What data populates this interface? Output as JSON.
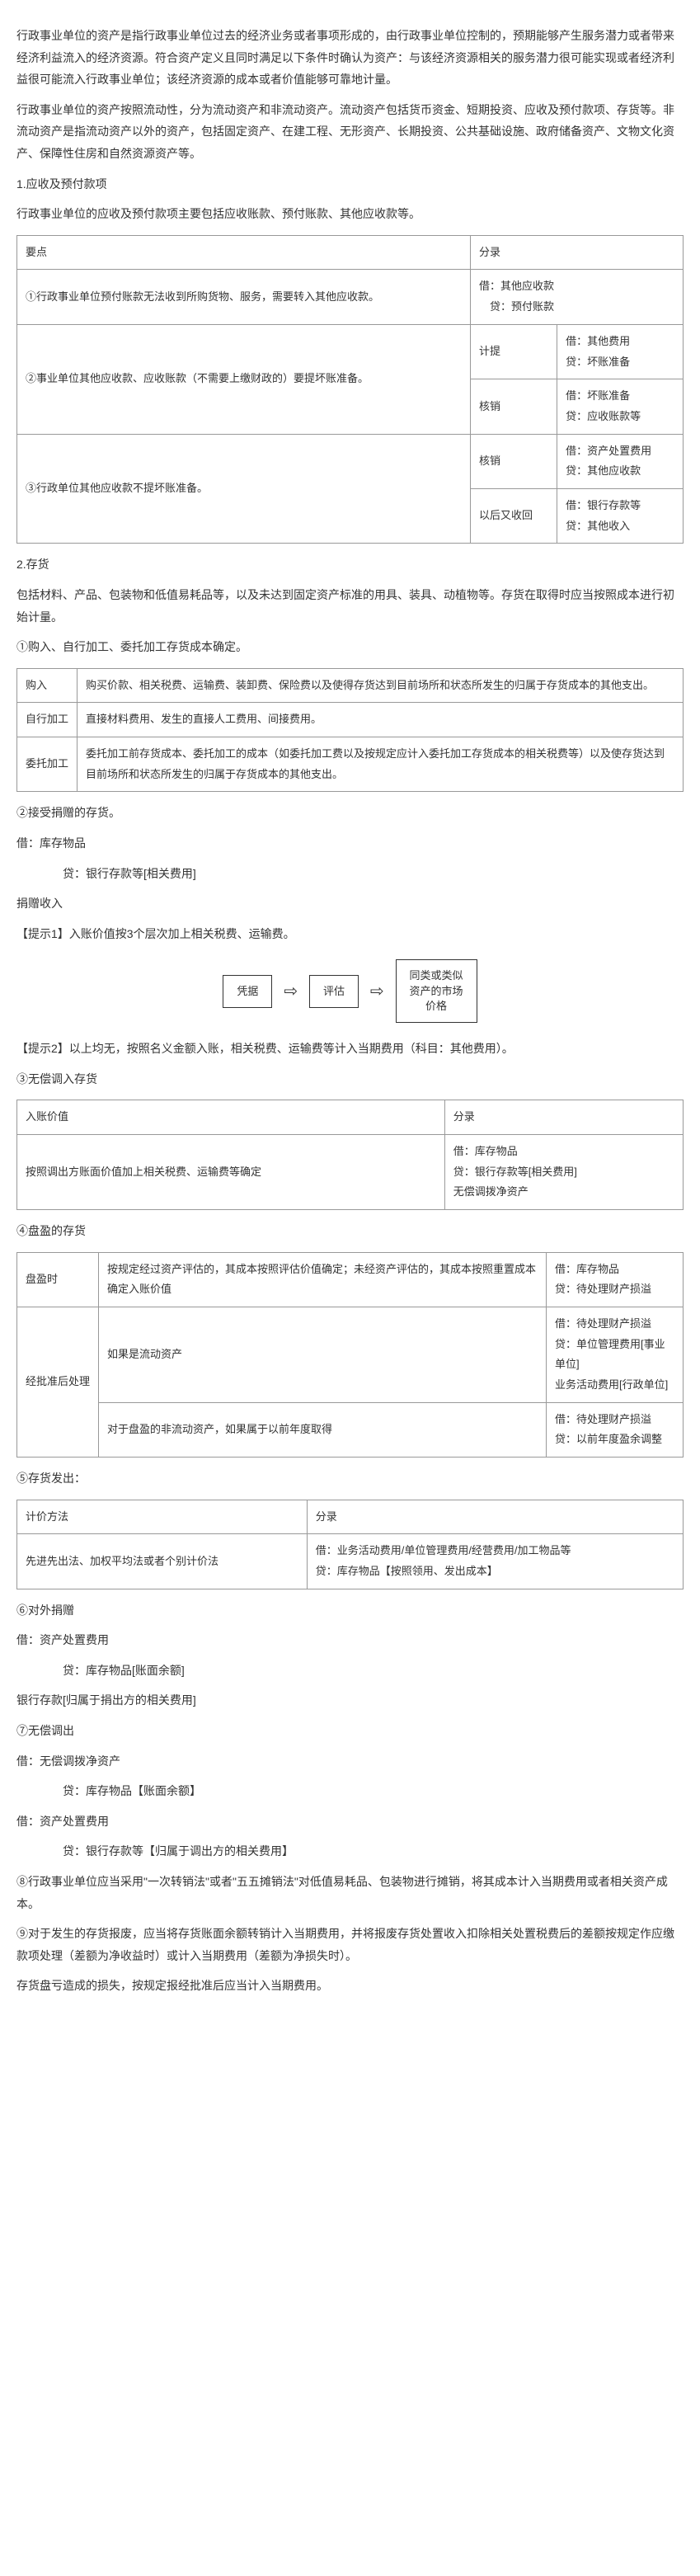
{
  "intro": {
    "p1": "行政事业单位的资产是指行政事业单位过去的经济业务或者事项形成的，由行政事业单位控制的，预期能够产生服务潜力或者带来经济利益流入的经济资源。符合资产定义且同时满足以下条件时确认为资产：与该经济资源相关的服务潜力很可能实现或者经济利益很可能流入行政事业单位；该经济资源的成本或者价值能够可靠地计量。",
    "p2": "行政事业单位的资产按照流动性，分为流动资产和非流动资产。流动资产包括货币资金、短期投资、应收及预付款项、存货等。非流动资产是指流动资产以外的资产，包括固定资产、在建工程、无形资产、长期投资、公共基础设施、政府储备资产、文物文化资产、保障性住房和自然资源资产等。"
  },
  "sec1": {
    "title": "1.应收及预付款项",
    "p1": "行政事业单位的应收及预付款项主要包括应收账款、预付账款、其他应收款等。",
    "table": {
      "h1": "要点",
      "h2": "分录",
      "r1c1": "①行政事业单位预付账款无法收到所购货物、服务，需要转入其他应收款。",
      "r1b1": "借：其他应收款",
      "r1b2": "　贷：预付账款",
      "r2c1": "②事业单位其他应收款、应收账款（不需要上缴财政的）要提坏账准备。",
      "r2a": "计提",
      "r2a1": "借：其他费用",
      "r2a2": "贷：坏账准备",
      "r2b": "核销",
      "r2b1": "借：坏账准备",
      "r2b2": "贷：应收账款等",
      "r3c1": "③行政单位其他应收款不提坏账准备。",
      "r3a": "核销",
      "r3a1": "借：资产处置费用",
      "r3a2": "贷：其他应收款",
      "r3b": "以后又收回",
      "r3b1": "借：银行存款等",
      "r3b2": "贷：其他收入"
    }
  },
  "sec2": {
    "title": "2.存货",
    "p1": "包括材料、产品、包装物和低值易耗品等，以及未达到固定资产标准的用具、装具、动植物等。存货在取得时应当按照成本进行初始计量。",
    "sub1": "①购入、自行加工、委托加工存货成本确定。",
    "t1": {
      "r1a": "购入",
      "r1b": "购买价款、相关税费、运输费、装卸费、保险费以及使得存货达到目前场所和状态所发生的归属于存货成本的其他支出。",
      "r2a": "自行加工",
      "r2b": "直接材料费用、发生的直接人工费用、间接费用。",
      "r3a": "委托加工",
      "r3b": "委托加工前存货成本、委托加工的成本（如委托加工费以及按规定应计入委托加工存货成本的相关税费等）以及使存货达到目前场所和状态所发生的归属于存货成本的其他支出。"
    },
    "sub2": "②接受捐赠的存货。",
    "e1": "借：库存物品",
    "e2": "　　贷：银行存款等[相关费用]",
    "e3": "捐赠收入",
    "tip1": "【提示1】入账价值按3个层次加上相关税费、运输费。",
    "flow": {
      "b1": "凭据",
      "b2": "评估",
      "b3": "同类或类似\n资产的市场\n价格"
    },
    "tip2": "【提示2】以上均无，按照名义金额入账，相关税费、运输费等计入当期费用（科目：其他费用）。",
    "sub3": "③无偿调入存货",
    "t2": {
      "h1": "入账价值",
      "h2": "分录",
      "r1a": "按照调出方账面价值加上相关税费、运输费等确定",
      "r1b1": "借：库存物品",
      "r1b2": "贷：银行存款等[相关费用]",
      "r1b3": "无偿调拨净资产"
    },
    "sub4": "④盘盈的存货",
    "t3": {
      "r1a": "盘盈时",
      "r1b": "按规定经过资产评估的，其成本按照评估价值确定；未经资产评估的，其成本按照重置成本确定入账价值",
      "r1c1": "借：库存物品",
      "r1c2": "贷：待处理财产损溢",
      "r2a": "经批准后处理",
      "r2b": "如果是流动资产",
      "r2c1": "借：待处理财产损溢",
      "r2c2": "贷：单位管理费用[事业单位]",
      "r2c3": "业务活动费用[行政单位]",
      "r3b": "对于盘盈的非流动资产，如果属于以前年度取得",
      "r3c1": "借：待处理财产损溢",
      "r3c2": "贷：以前年度盈余调整"
    },
    "sub5": "⑤存货发出：",
    "t4": {
      "h1": "计价方法",
      "h2": "分录",
      "r1a": "先进先出法、加权平均法或者个别计价法",
      "r1b1": "借：业务活动费用/单位管理费用/经营费用/加工物品等",
      "r1b2": "贷：库存物品【按照领用、发出成本】"
    },
    "sub6": "⑥对外捐赠",
    "c1": "借：资产处置费用",
    "c2": "　　贷：库存物品[账面余额]",
    "c3": "银行存款[归属于捐出方的相关费用]",
    "sub7": "⑦无偿调出",
    "d1": "借：无偿调拨净资产",
    "d2": "　　贷：库存物品【账面余额】",
    "d3": "借：资产处置费用",
    "d4": "　　贷：银行存款等【归属于调出方的相关费用】",
    "sub8": "⑧行政事业单位应当采用\"一次转销法\"或者\"五五摊销法\"对低值易耗品、包装物进行摊销，将其成本计入当期费用或者相关资产成本。",
    "sub9": "⑨对于发生的存货报废，应当将存货账面余额转销计入当期费用，并将报废存货处置收入扣除相关处置税费后的差额按规定作应缴款项处理（差额为净收益时）或计入当期费用（差额为净损失时）。",
    "sub10": "存货盘亏造成的损失，按规定报经批准后应当计入当期费用。"
  }
}
